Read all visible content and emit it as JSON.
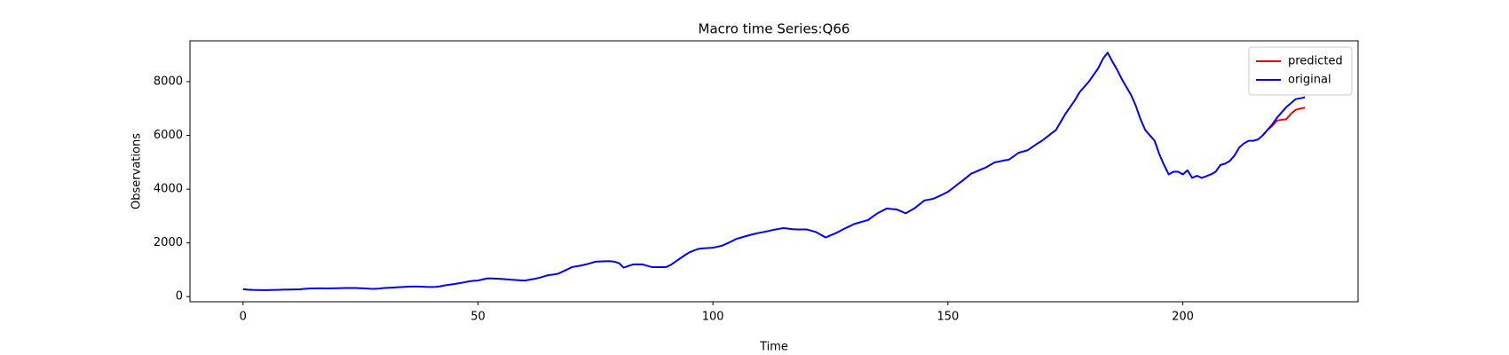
{
  "chart_data": {
    "type": "line",
    "title": "Macro time Series:Q66",
    "xlabel": "Time",
    "ylabel": "Observations",
    "x": [
      0,
      1,
      2,
      3,
      4,
      5,
      6,
      7,
      8,
      9,
      10,
      11,
      12,
      13,
      14,
      15,
      16,
      17,
      18,
      19,
      20,
      21,
      22,
      23,
      24,
      25,
      26,
      27,
      28,
      29,
      30,
      31,
      32,
      33,
      34,
      35,
      36,
      37,
      38,
      39,
      40,
      41,
      42,
      43,
      44,
      45,
      46,
      47,
      48,
      49,
      50,
      51,
      52,
      53,
      54,
      55,
      56,
      57,
      58,
      59,
      60,
      61,
      62,
      63,
      64,
      65,
      66,
      67,
      68,
      69,
      70,
      71,
      72,
      73,
      74,
      75,
      76,
      77,
      78,
      79,
      80,
      81,
      82,
      83,
      84,
      85,
      86,
      87,
      88,
      89,
      90,
      91,
      92,
      93,
      94,
      95,
      96,
      97,
      98,
      99,
      100,
      101,
      102,
      103,
      104,
      105,
      106,
      107,
      108,
      109,
      110,
      111,
      112,
      113,
      114,
      115,
      116,
      117,
      118,
      119,
      120,
      121,
      122,
      123,
      124,
      125,
      126,
      127,
      128,
      129,
      130,
      131,
      132,
      133,
      134,
      135,
      136,
      137,
      138,
      139,
      140,
      141,
      142,
      143,
      144,
      145,
      146,
      147,
      148,
      149,
      150,
      151,
      152,
      153,
      154,
      155,
      156,
      157,
      158,
      159,
      160,
      161,
      162,
      163,
      164,
      165,
      166,
      167,
      168,
      169,
      170,
      171,
      172,
      173,
      174,
      175,
      176,
      177,
      178,
      179,
      180,
      181,
      182,
      183,
      184,
      185,
      186,
      187,
      188,
      189,
      190,
      191,
      192,
      193,
      194,
      195,
      196,
      197,
      198,
      199,
      200,
      201,
      202,
      203,
      204,
      205,
      206,
      207,
      208,
      209,
      210,
      211,
      212,
      213,
      214,
      215,
      216,
      217,
      218,
      219,
      220,
      221,
      222,
      223,
      224,
      225,
      226
    ],
    "series": [
      {
        "name": "predicted",
        "color": "#ff0000",
        "values": [
          null,
          null,
          null,
          null,
          null,
          null,
          null,
          null,
          null,
          null,
          null,
          null,
          null,
          null,
          null,
          null,
          null,
          null,
          null,
          null,
          null,
          null,
          null,
          null,
          null,
          null,
          null,
          null,
          null,
          null,
          null,
          null,
          null,
          null,
          null,
          null,
          null,
          null,
          null,
          null,
          null,
          null,
          null,
          null,
          null,
          null,
          null,
          null,
          null,
          null,
          null,
          null,
          null,
          null,
          null,
          null,
          null,
          null,
          null,
          null,
          null,
          null,
          null,
          null,
          null,
          null,
          null,
          null,
          null,
          null,
          null,
          null,
          null,
          null,
          null,
          null,
          null,
          null,
          null,
          null,
          null,
          null,
          null,
          null,
          null,
          null,
          null,
          null,
          null,
          null,
          null,
          null,
          null,
          null,
          null,
          null,
          null,
          null,
          null,
          null,
          null,
          null,
          null,
          null,
          null,
          null,
          null,
          null,
          null,
          null,
          null,
          null,
          null,
          null,
          null,
          null,
          null,
          null,
          null,
          null,
          null,
          null,
          null,
          null,
          null,
          null,
          null,
          null,
          null,
          null,
          null,
          null,
          null,
          null,
          null,
          null,
          null,
          null,
          null,
          null,
          null,
          null,
          null,
          null,
          null,
          null,
          null,
          null,
          null,
          null,
          null,
          null,
          null,
          null,
          null,
          null,
          null,
          null,
          null,
          null,
          null,
          null,
          null,
          null,
          null,
          null,
          null,
          null,
          null,
          null,
          null,
          null,
          null,
          null,
          null,
          null,
          null,
          null,
          null,
          null,
          null,
          null,
          null,
          null,
          null,
          null,
          null,
          null,
          null,
          null,
          null,
          null,
          null,
          null,
          null,
          null,
          null,
          null,
          null,
          null,
          null,
          null,
          null,
          null,
          null,
          null,
          null,
          null,
          null,
          null,
          null,
          null,
          null,
          null,
          null,
          null,
          null,
          6000,
          6200,
          6350,
          6550,
          6580,
          6600,
          6800,
          6950,
          7000,
          7030
        ]
      },
      {
        "name": "original",
        "color": "#0000ff",
        "values": [
          280,
          260,
          250,
          248,
          245,
          245,
          248,
          252,
          258,
          262,
          265,
          268,
          272,
          290,
          300,
          305,
          308,
          310,
          305,
          308,
          312,
          316,
          320,
          322,
          322,
          315,
          305,
          295,
          290,
          300,
          320,
          330,
          340,
          350,
          360,
          370,
          375,
          375,
          370,
          362,
          360,
          365,
          385,
          420,
          445,
          470,
          500,
          530,
          565,
          590,
          600,
          640,
          680,
          675,
          670,
          660,
          645,
          630,
          620,
          605,
          600,
          630,
          660,
          700,
          750,
          800,
          820,
          850,
          930,
          1010,
          1100,
          1130,
          1160,
          1200,
          1250,
          1300,
          1310,
          1315,
          1320,
          1300,
          1250,
          1080,
          1140,
          1200,
          1200,
          1200,
          1150,
          1100,
          1100,
          1100,
          1100,
          1180,
          1300,
          1420,
          1540,
          1650,
          1720,
          1780,
          1800,
          1810,
          1820,
          1860,
          1900,
          1980,
          2060,
          2150,
          2200,
          2250,
          2300,
          2340,
          2380,
          2410,
          2450,
          2490,
          2520,
          2550,
          2530,
          2510,
          2500,
          2500,
          2500,
          2450,
          2400,
          2300,
          2200,
          2280,
          2350,
          2440,
          2530,
          2610,
          2700,
          2750,
          2800,
          2850,
          2980,
          3100,
          3190,
          3280,
          3260,
          3250,
          3180,
          3100,
          3200,
          3300,
          3440,
          3580,
          3610,
          3650,
          3730,
          3810,
          3900,
          4030,
          4170,
          4300,
          4440,
          4580,
          4650,
          4730,
          4800,
          4900,
          5000,
          5030,
          5070,
          5100,
          5220,
          5350,
          5400,
          5450,
          5570,
          5690,
          5800,
          5930,
          6070,
          6200,
          6500,
          6800,
          7050,
          7300,
          7600,
          7800,
          8000,
          8250,
          8500,
          8850,
          9080,
          8750,
          8450,
          8100,
          7800,
          7500,
          7100,
          6600,
          6200,
          6000,
          5800,
          5300,
          4900,
          4550,
          4650,
          4650,
          4550,
          4700,
          4420,
          4500,
          4420,
          4480,
          4550,
          4650,
          4900,
          4950,
          5050,
          5250,
          5550,
          5700,
          5800,
          5800,
          5850,
          6000,
          6200,
          6400,
          6650,
          6850,
          7050,
          7200,
          7350,
          7380,
          7420
        ]
      }
    ],
    "xlim": [
      -11.3,
      237.3
    ],
    "ylim": [
      -190,
      9520
    ],
    "xticks": [
      0,
      50,
      100,
      150,
      200
    ],
    "yticks": [
      0,
      2000,
      4000,
      6000,
      8000
    ],
    "legend": "upper right"
  }
}
